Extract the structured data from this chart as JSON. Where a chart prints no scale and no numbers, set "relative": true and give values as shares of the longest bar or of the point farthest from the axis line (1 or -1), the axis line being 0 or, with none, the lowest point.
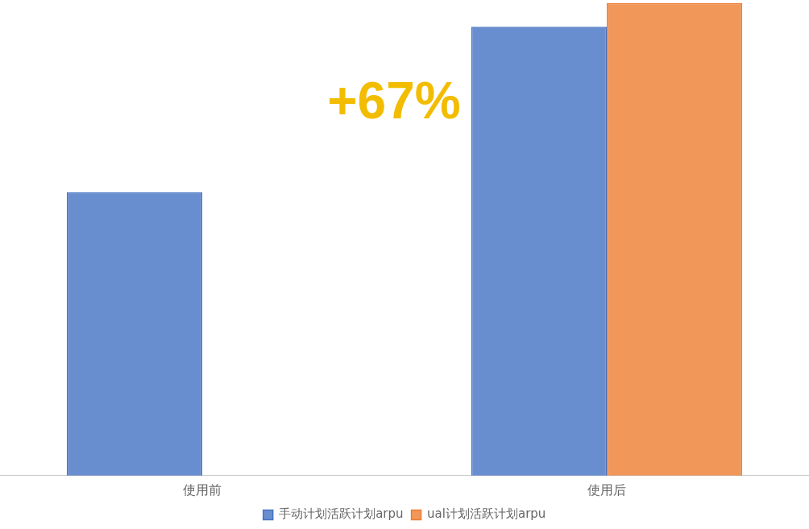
{
  "chart_data": {
    "type": "bar",
    "relative": true,
    "categories": [
      "使用前",
      "使用后"
    ],
    "series": [
      {
        "name": "手动计划活跃计划arpu",
        "color": "#4472c4",
        "values": [
          0.6,
          0.95
        ]
      },
      {
        "name": "ual计划活跃计划arpu",
        "color": "#ed7d31",
        "values": [
          null,
          1
        ]
      }
    ],
    "annotations": [
      "+67%"
    ],
    "grid": false,
    "legend": "bottom"
  }
}
